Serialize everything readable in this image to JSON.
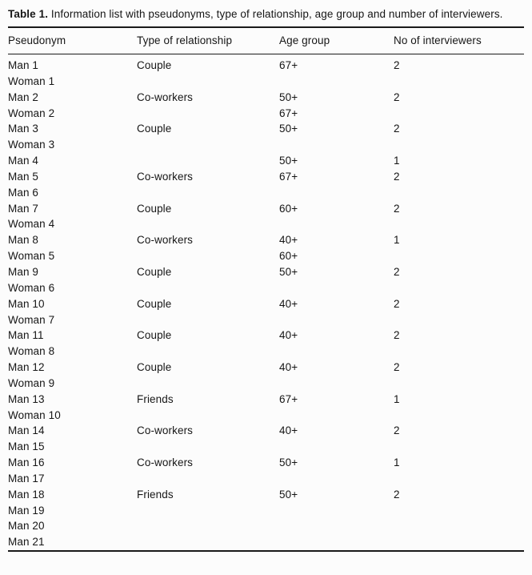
{
  "table": {
    "title_label": "Table 1.",
    "title_text": " Information list with pseudonyms, type of relationship, age group and number of interviewers.",
    "columns": [
      "Pseudonym",
      "Type of relationship",
      "Age group",
      "No of interviewers"
    ],
    "rows": [
      [
        "Man 1",
        "Couple",
        "67+",
        "2"
      ],
      [
        "Woman 1",
        "",
        "",
        ""
      ],
      [
        "Man 2",
        "Co-workers",
        "50+",
        "2"
      ],
      [
        "Woman 2",
        "",
        "67+",
        ""
      ],
      [
        "Man 3",
        "Couple",
        "50+",
        "2"
      ],
      [
        "Woman 3",
        "",
        "",
        ""
      ],
      [
        "Man 4",
        "",
        "50+",
        "1"
      ],
      [
        "Man 5",
        "Co-workers",
        "67+",
        "2"
      ],
      [
        "Man 6",
        "",
        "",
        ""
      ],
      [
        "Man 7",
        "Couple",
        "60+",
        "2"
      ],
      [
        "Woman 4",
        "",
        "",
        ""
      ],
      [
        "Man 8",
        "Co-workers",
        "40+",
        "1"
      ],
      [
        "Woman 5",
        "",
        "60+",
        ""
      ],
      [
        "Man 9",
        "Couple",
        "50+",
        "2"
      ],
      [
        "Woman 6",
        "",
        "",
        ""
      ],
      [
        "Man 10",
        "Couple",
        "40+",
        "2"
      ],
      [
        "Woman 7",
        "",
        "",
        ""
      ],
      [
        "Man 11",
        "Couple",
        "40+",
        "2"
      ],
      [
        "Woman 8",
        "",
        "",
        ""
      ],
      [
        "Man 12",
        "Couple",
        "40+",
        "2"
      ],
      [
        "Woman 9",
        "",
        "",
        ""
      ],
      [
        "Man 13",
        "Friends",
        "67+",
        "1"
      ],
      [
        "Woman 10",
        "",
        "",
        ""
      ],
      [
        "Man 14",
        "Co-workers",
        "40+",
        "2"
      ],
      [
        "Man 15",
        "",
        "",
        ""
      ],
      [
        "Man 16",
        "Co-workers",
        "50+",
        "1"
      ],
      [
        "Man 17",
        "",
        "",
        ""
      ],
      [
        "Man 18",
        "Friends",
        "50+",
        "2"
      ],
      [
        "Man 19",
        "",
        "",
        ""
      ],
      [
        "Man 20",
        "",
        "",
        ""
      ],
      [
        "Man 21",
        "",
        "",
        ""
      ]
    ]
  }
}
